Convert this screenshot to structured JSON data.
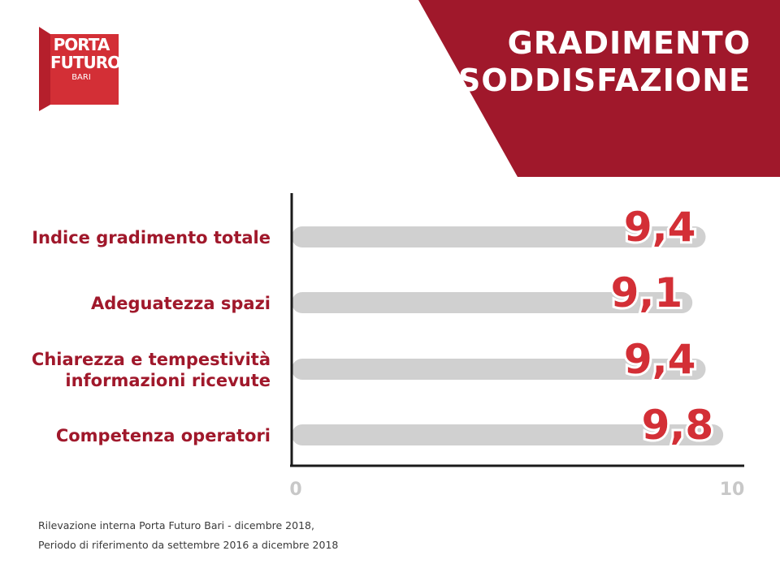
{
  "header": {
    "title_lines": [
      "GRADIMENTO",
      "E SODDISFAZIONE"
    ],
    "accent_color": "#a0182b"
  },
  "logo": {
    "line1": "PORTA",
    "line2": "FUTURO",
    "line3": "BARI",
    "color": "#d32f36"
  },
  "chart_data": {
    "type": "bar",
    "orientation": "horizontal",
    "categories": [
      [
        "Indice gradimento totale"
      ],
      [
        "Adeguatezza spazi"
      ],
      [
        "Chiarezza e tempestività",
        "informazioni ricevute"
      ],
      [
        "Competenza operatori"
      ]
    ],
    "values": [
      9.4,
      9.1,
      9.4,
      9.8
    ],
    "value_labels": [
      "9,4",
      "9,1",
      "9,4",
      "9,8"
    ],
    "xlim": [
      0,
      10
    ],
    "x_ticks": [
      "0",
      "10"
    ],
    "bar_color": "#d0d0d0",
    "label_color": "#d32f36",
    "grid": false
  },
  "source": {
    "line1": "Rilevazione interna Porta Futuro Bari - dicembre 2018,",
    "line2": "Periodo di riferimento da settembre 2016 a dicembre 2018"
  }
}
